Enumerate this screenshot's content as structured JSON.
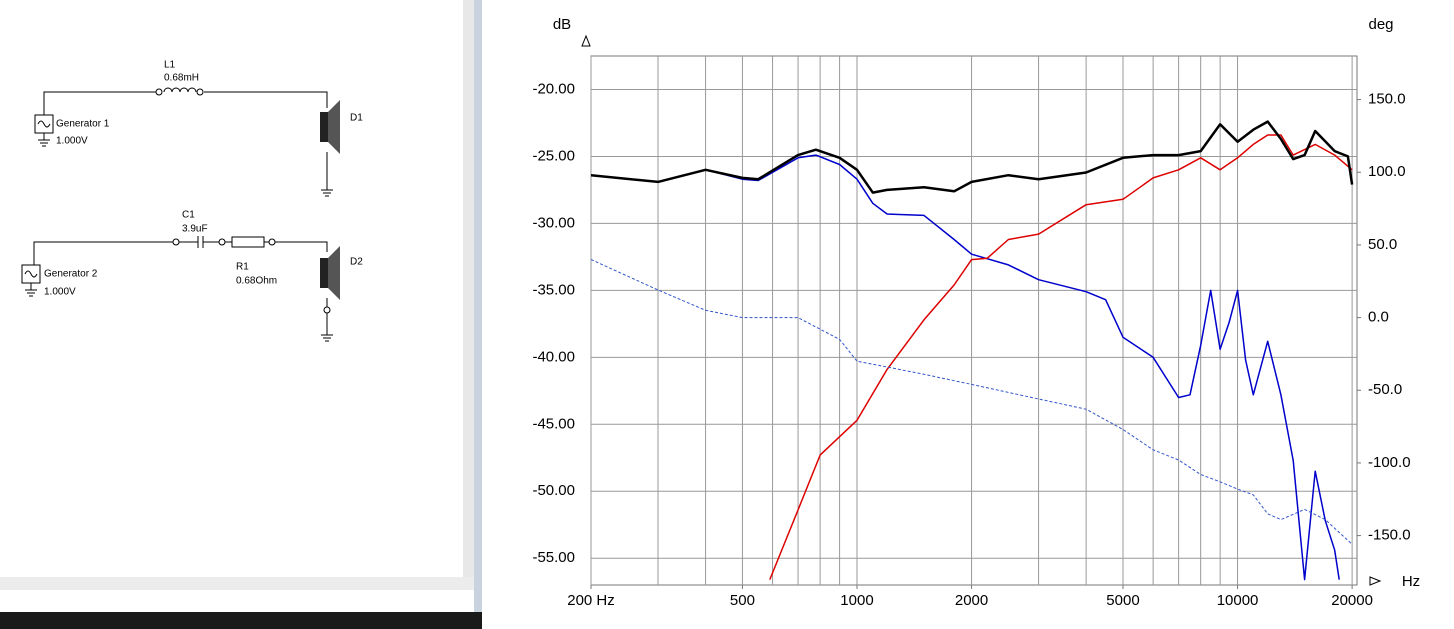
{
  "schematic": {
    "generator_1": {
      "label": "Generator 1",
      "voltage": "1.000V"
    },
    "inductor": {
      "ref": "L1",
      "value": "0.68mH"
    },
    "driver_1": "D1",
    "capacitor": {
      "ref": "C1",
      "value": "3.9uF"
    },
    "resistor": {
      "ref": "R1",
      "value": "0.68Ohm"
    },
    "generator_2": {
      "label": "Generator 2",
      "voltage": "1.000V"
    },
    "driver_2": "D2"
  },
  "chart_data": {
    "type": "line",
    "y_label": "dB",
    "y2_label": "deg",
    "x_label": "Hz",
    "x_scale": "log",
    "grid": true,
    "xlim": [
      200,
      20600
    ],
    "ylim": [
      -57,
      -17.5
    ],
    "y2lim": [
      -184,
      180
    ],
    "xticks": [
      {
        "value": 200,
        "label": "200 Hz"
      },
      500,
      1000,
      2000,
      5000,
      10000,
      20000
    ],
    "xgrid": [
      200,
      300,
      400,
      500,
      600,
      700,
      800,
      900,
      1000,
      2000,
      3000,
      4000,
      5000,
      6000,
      7000,
      8000,
      9000,
      10000,
      20000
    ],
    "yticks": [
      {
        "value": -20,
        "label": "-20.00"
      },
      {
        "value": -25,
        "label": "-25.00"
      },
      {
        "value": -30,
        "label": "-30.00"
      },
      {
        "value": -35,
        "label": "-35.00"
      },
      {
        "value": -40,
        "label": "-40.00"
      },
      {
        "value": -45,
        "label": "-45.00"
      },
      {
        "value": -50,
        "label": "-50.00"
      },
      {
        "value": -55,
        "label": "-55.00"
      }
    ],
    "y2ticks": [
      {
        "value": 150,
        "label": "150.0"
      },
      {
        "value": 100,
        "label": "100.0"
      },
      {
        "value": 50,
        "label": "50.0"
      },
      {
        "value": 0,
        "label": "0.0"
      },
      {
        "value": -50,
        "label": "-50.0"
      },
      {
        "value": -100,
        "label": "-100.0"
      },
      {
        "value": -150,
        "label": "-150.0"
      }
    ],
    "series": [
      {
        "color": "#0000cc",
        "width": 1.5,
        "x": [
          200,
          300,
          400,
          500,
          550,
          700,
          780,
          900,
          1000,
          1100,
          1200,
          1500,
          1800,
          2000,
          2500,
          3000,
          4000,
          4500,
          5000,
          6000,
          7000,
          7500,
          8000,
          8500,
          9000,
          9500,
          10000,
          10500,
          11000,
          12000,
          13000,
          14000,
          15000,
          16000,
          17000,
          18000,
          18500
        ],
        "values": [
          -26.4,
          -26.9,
          -26.0,
          -26.7,
          -26.8,
          -25.1,
          -24.9,
          -25.6,
          -26.7,
          -28.5,
          -29.3,
          -29.4,
          -31.2,
          -32.3,
          -33.1,
          -34.2,
          -35.1,
          -35.7,
          -38.5,
          -40.0,
          -43.0,
          -42.8,
          -39.1,
          -35.0,
          -39.4,
          -37.4,
          -35.0,
          -40.2,
          -42.8,
          -38.8,
          -42.8,
          -47.7,
          -56.6,
          -48.5,
          -52.2,
          -54.4,
          -56.6
        ]
      },
      {
        "color": "#dd0000",
        "width": 1.5,
        "x": [
          590,
          700,
          800,
          1000,
          1200,
          1500,
          1800,
          2000,
          2200,
          2500,
          3000,
          4000,
          5000,
          6000,
          7000,
          8000,
          9000,
          10000,
          11000,
          12000,
          13000,
          14000,
          16000,
          18000,
          20000
        ],
        "values": [
          -56.6,
          -51.4,
          -47.3,
          -44.7,
          -40.9,
          -37.2,
          -34.6,
          -32.7,
          -32.6,
          -31.2,
          -30.8,
          -28.6,
          -28.2,
          -26.6,
          -26.0,
          -25.1,
          -26.0,
          -25.1,
          -24.1,
          -23.4,
          -23.4,
          -24.9,
          -24.1,
          -24.9,
          -26.0
        ]
      },
      {
        "color": "#000000",
        "width": 2.5,
        "x": [
          200,
          300,
          400,
          500,
          550,
          700,
          780,
          900,
          1000,
          1100,
          1200,
          1500,
          1800,
          2000,
          2500,
          3000,
          4000,
          5000,
          6000,
          7000,
          8000,
          9000,
          10000,
          11000,
          12000,
          13000,
          14000,
          15000,
          16000,
          18000,
          19500,
          20000
        ],
        "values": [
          -26.4,
          -26.9,
          -26.0,
          -26.6,
          -26.7,
          -24.9,
          -24.5,
          -25.1,
          -26.0,
          -27.7,
          -27.5,
          -27.3,
          -27.6,
          -26.9,
          -26.4,
          -26.7,
          -26.2,
          -25.1,
          -24.9,
          -24.9,
          -24.6,
          -22.6,
          -23.9,
          -23.0,
          -22.4,
          -23.7,
          -25.2,
          -24.9,
          -23.1,
          -24.6,
          -25.0,
          -27.1
        ]
      },
      {
        "color": "#3355cc",
        "width": 1,
        "dash": "3,2",
        "axis": "y2",
        "x": [
          200,
          300,
          400,
          500,
          700,
          900,
          1000,
          1200,
          1500,
          2000,
          3000,
          4000,
          5000,
          6000,
          7000,
          8000,
          9000,
          10000,
          11000,
          12000,
          13000,
          15000,
          17000,
          20000
        ],
        "values": [
          40,
          19,
          5,
          0,
          0,
          -15,
          -30,
          -34,
          -39,
          -46,
          -56,
          -63,
          -77,
          -91,
          -98,
          -108,
          -113,
          -118,
          -122,
          -135,
          -139,
          -132,
          -139,
          -156
        ]
      }
    ]
  }
}
